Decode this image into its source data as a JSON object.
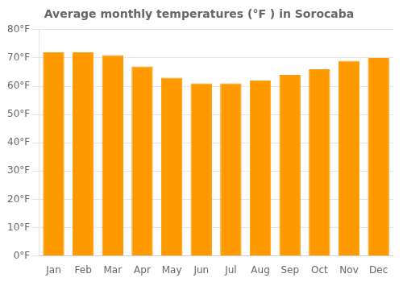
{
  "chart_data": {
    "type": "bar",
    "title": "Average monthly temperatures (°F ) in Sorocaba",
    "categories": [
      "Jan",
      "Feb",
      "Mar",
      "Apr",
      "May",
      "Jun",
      "Jul",
      "Aug",
      "Sep",
      "Oct",
      "Nov",
      "Dec"
    ],
    "values": [
      72,
      72,
      71,
      67,
      63,
      61,
      61,
      62,
      64,
      66,
      69,
      70
    ],
    "color": "#FF9900",
    "ylim": [
      0,
      80
    ],
    "yticks": [
      {
        "value": 0,
        "label": "0°F"
      },
      {
        "value": 10,
        "label": "10°F"
      },
      {
        "value": 20,
        "label": "20°F"
      },
      {
        "value": 30,
        "label": "30°F"
      },
      {
        "value": 40,
        "label": "40°F"
      },
      {
        "value": 50,
        "label": "50°F"
      },
      {
        "value": 60,
        "label": "60°F"
      },
      {
        "value": 70,
        "label": "70°F"
      },
      {
        "value": 80,
        "label": "80°F"
      }
    ],
    "grid": true
  }
}
